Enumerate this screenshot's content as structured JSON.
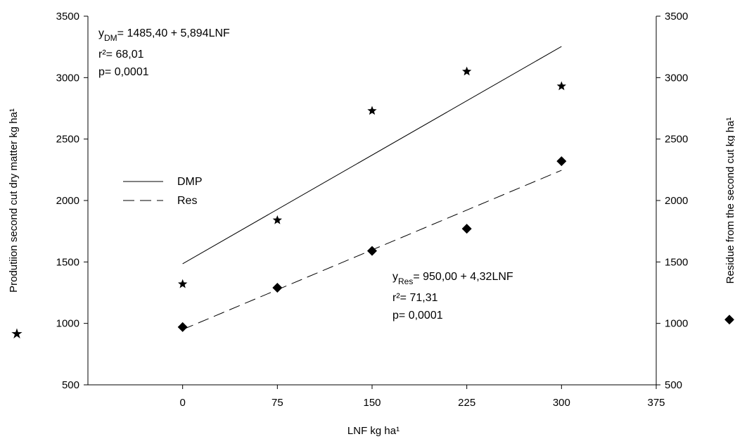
{
  "chart_data": {
    "type": "scatter",
    "xlabel": "LNF kg ha¹",
    "ylabel_left": "Produtiion second cut dry matter  kg ha¹",
    "ylabel_right": "Residue from the second cut kg ha¹",
    "left_marker_symbol": "★",
    "right_marker_symbol": "◆",
    "xlim": [
      -75,
      375
    ],
    "ylim": [
      500,
      3500
    ],
    "x_ticks": [
      0,
      75,
      150,
      225,
      300,
      375
    ],
    "y_ticks": [
      500,
      1000,
      1500,
      2000,
      2500,
      3000,
      3500
    ],
    "grid": false,
    "legend_position": "left-middle",
    "series": [
      {
        "name": "DMP",
        "marker": "star",
        "line_style": "solid",
        "x": [
          0,
          75,
          150,
          225,
          300
        ],
        "y": [
          1320,
          1840,
          2730,
          3050,
          2930
        ],
        "fit": {
          "intercept": 1485.4,
          "slope": 5.894,
          "x_range": [
            0,
            300
          ]
        }
      },
      {
        "name": "Res",
        "marker": "diamond",
        "line_style": "dashed",
        "x": [
          0,
          75,
          150,
          225,
          300
        ],
        "y": [
          970,
          1290,
          1590,
          1770,
          2320
        ],
        "fit": {
          "intercept": 950.0,
          "slope": 4.32,
          "x_range": [
            0,
            300
          ]
        }
      }
    ],
    "annotations": {
      "dm": {
        "y_symbol": "y",
        "subscript": "DM",
        "equation": "= 1485,40 + 5,894LNF",
        "r2": "r²= 68,01",
        "p": "p= 0,0001"
      },
      "res": {
        "y_symbol": "y",
        "subscript": "Res",
        "equation": "= 950,00 + 4,32LNF",
        "r2": "r²= 71,31",
        "p": "p= 0,0001"
      }
    }
  }
}
